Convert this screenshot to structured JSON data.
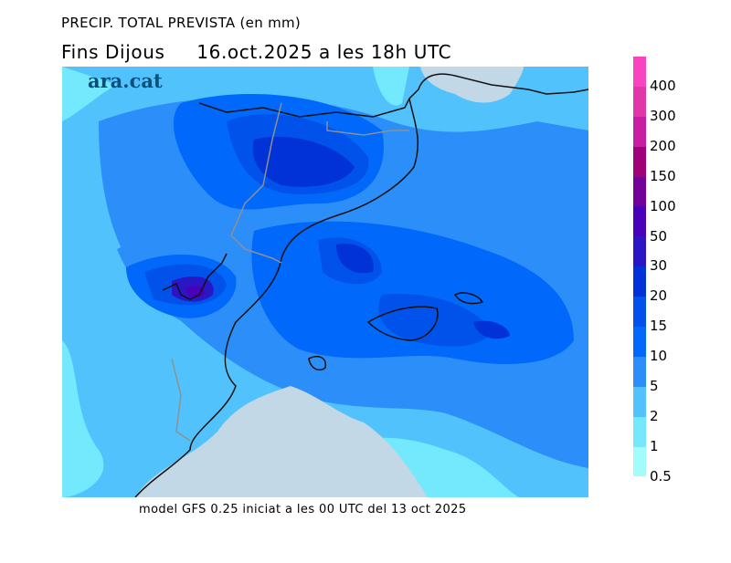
{
  "title": "PRECIP. TOTAL PREVISTA (en mm)",
  "subtitle": "Fins Dijous     16.oct.2025 a les 18h UTC",
  "logo": "ara.cat",
  "footer": "model GFS 0.25 iniciat a les 00 UTC del 13 oct 2025",
  "legend": {
    "unit": "mm",
    "bins": [
      {
        "color": "#f844c0"
      },
      {
        "color": "#e038a8"
      },
      {
        "color": "#c81ea4"
      },
      {
        "color": "#a00078"
      },
      {
        "color": "#74009a"
      },
      {
        "color": "#4800b8"
      },
      {
        "color": "#2a16c4"
      },
      {
        "color": "#0032d8"
      },
      {
        "color": "#0052ea"
      },
      {
        "color": "#0068fa"
      },
      {
        "color": "#2c8ef8"
      },
      {
        "color": "#52c2fc"
      },
      {
        "color": "#74e8fc"
      },
      {
        "color": "#a2fcfc"
      }
    ],
    "labels": [
      "400",
      "300",
      "200",
      "150",
      "100",
      "50",
      "30",
      "20",
      "15",
      "10",
      "5",
      "2",
      "1",
      "0.5"
    ]
  },
  "colors": {
    "land_no_precip": "#c2d8e6",
    "coast": "#111111",
    "border": "#909090"
  }
}
